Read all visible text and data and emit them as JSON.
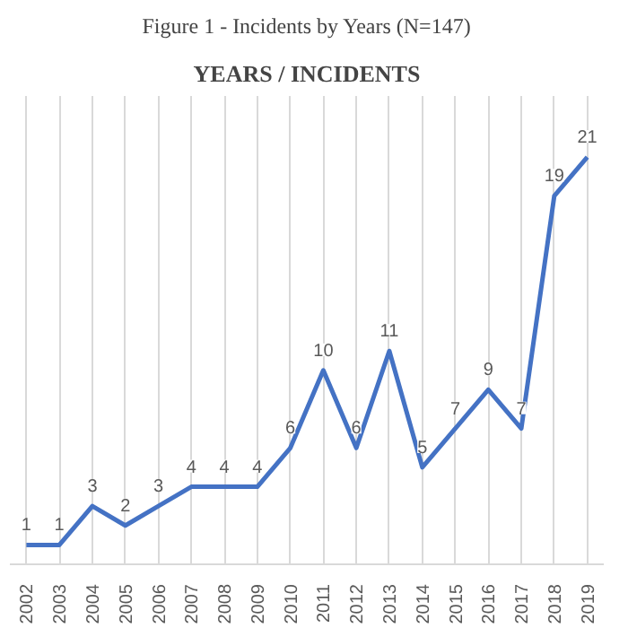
{
  "chart_data": {
    "type": "line",
    "title": "Figure 1 - Incidents by Years (N=147)",
    "subtitle": "YEARS / INCIDENTS",
    "categories": [
      "2002",
      "2003",
      "2004",
      "2005",
      "2006",
      "2007",
      "2008",
      "2009",
      "2010",
      "2011",
      "2012",
      "2013",
      "2014",
      "2015",
      "2016",
      "2017",
      "2018",
      "2019"
    ],
    "series": [
      {
        "color": "#4472c4",
        "values": [
          1,
          1,
          3,
          2,
          3,
          4,
          4,
          4,
          6,
          10,
          6,
          11,
          5,
          7,
          9,
          7,
          19,
          21
        ]
      }
    ],
    "data_labels": true,
    "grid": "x",
    "tick_labels": "x",
    "marker": "none",
    "line_style": "solid"
  }
}
